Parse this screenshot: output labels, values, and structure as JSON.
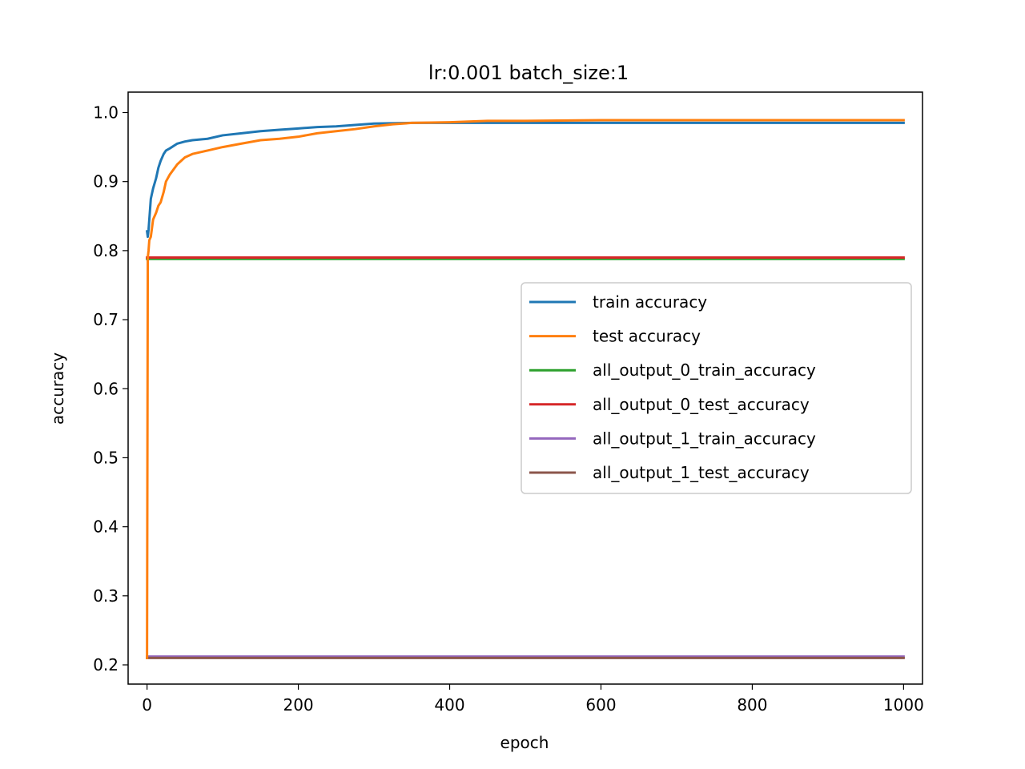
{
  "chart_data": {
    "type": "line",
    "title": "lr:0.001 batch_size:1",
    "xlabel": "epoch",
    "ylabel": "accuracy",
    "xlim": [
      -25,
      1025
    ],
    "ylim": [
      0.2,
      1.0
    ],
    "xticks": [
      0,
      200,
      400,
      600,
      800,
      1000
    ],
    "xtick_labels": [
      "0",
      "200",
      "400",
      "600",
      "800",
      "1000"
    ],
    "yticks": [
      0.2,
      0.3,
      0.4,
      0.5,
      0.6,
      0.7,
      0.8,
      0.9,
      1.0
    ],
    "ytick_labels": [
      "0.2",
      "0.3",
      "0.4",
      "0.5",
      "0.6",
      "0.7",
      "0.8",
      "0.9",
      "1.0"
    ],
    "grid": false,
    "legend_position": "center-right",
    "series": [
      {
        "name": "train accuracy",
        "color": "#1f77b4",
        "x": [
          0,
          1,
          2,
          3,
          5,
          8,
          12,
          15,
          18,
          22,
          25,
          30,
          40,
          50,
          60,
          70,
          80,
          100,
          125,
          150,
          175,
          200,
          225,
          250,
          275,
          300,
          350,
          400,
          450,
          500,
          600,
          700,
          800,
          900,
          1000
        ],
        "y": [
          0.828,
          0.82,
          0.83,
          0.845,
          0.875,
          0.89,
          0.905,
          0.92,
          0.93,
          0.94,
          0.945,
          0.948,
          0.955,
          0.958,
          0.96,
          0.961,
          0.962,
          0.967,
          0.97,
          0.973,
          0.975,
          0.977,
          0.979,
          0.98,
          0.982,
          0.984,
          0.985,
          0.985,
          0.985,
          0.985,
          0.985,
          0.985,
          0.985,
          0.985,
          0.985
        ]
      },
      {
        "name": "test accuracy",
        "color": "#ff7f0e",
        "x": [
          0,
          1,
          2,
          3,
          5,
          8,
          12,
          15,
          18,
          22,
          25,
          30,
          40,
          50,
          60,
          80,
          100,
          125,
          150,
          175,
          200,
          225,
          250,
          275,
          300,
          325,
          350,
          400,
          450,
          500,
          600,
          700,
          800,
          900,
          1000
        ],
        "y": [
          0.21,
          0.79,
          0.8,
          0.815,
          0.82,
          0.845,
          0.855,
          0.865,
          0.87,
          0.885,
          0.9,
          0.91,
          0.925,
          0.935,
          0.94,
          0.945,
          0.95,
          0.955,
          0.96,
          0.962,
          0.965,
          0.97,
          0.973,
          0.976,
          0.98,
          0.983,
          0.985,
          0.986,
          0.988,
          0.988,
          0.989,
          0.989,
          0.989,
          0.989,
          0.989
        ]
      },
      {
        "name": "all_output_0_train_accuracy",
        "color": "#2ca02c",
        "x": [
          0,
          1000
        ],
        "y": [
          0.788,
          0.788
        ]
      },
      {
        "name": "all_output_0_test_accuracy",
        "color": "#d62728",
        "x": [
          0,
          1000
        ],
        "y": [
          0.79,
          0.79
        ]
      },
      {
        "name": "all_output_1_train_accuracy",
        "color": "#9467bd",
        "x": [
          0,
          1000
        ],
        "y": [
          0.212,
          0.212
        ]
      },
      {
        "name": "all_output_1_test_accuracy",
        "color": "#8c564b",
        "x": [
          0,
          1000
        ],
        "y": [
          0.21,
          0.21
        ]
      }
    ]
  }
}
